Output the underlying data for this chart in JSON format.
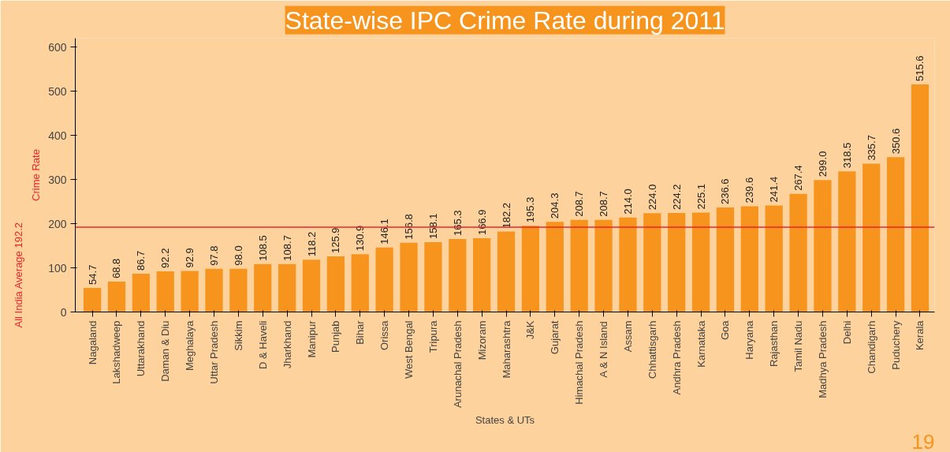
{
  "chart_data": {
    "type": "bar",
    "title": "State-wise IPC Crime Rate during 2011",
    "xlabel": "States & UTs",
    "ylabel": "Crime Rate",
    "categories": [
      "Nagaland",
      "Lakshadweep",
      "Uttarakhand",
      "Daman & Diu",
      "Meghalaya",
      "Uttar Pradesh",
      "Sikkim",
      "D & Haveli",
      "Jharkhand",
      "Manipur",
      "Punjab",
      "Bihar",
      "Orissa",
      "West Bengal",
      "Tripura",
      "Arunachal Pradesh",
      "Mizoram",
      "Maharashtra",
      "J&K",
      "Gujarat",
      "Himachal Pradesh",
      "A & N Island",
      "Assam",
      "Chhattisgarh",
      "Andhra Pradesh",
      "Karnataka",
      "Goa",
      "Haryana",
      "Rajasthan",
      "Tamil Nadu",
      "Madhya Pradesh",
      "Delhi",
      "Chandigarh",
      "Puduchery",
      "Kerala"
    ],
    "values": [
      54.7,
      68.8,
      86.7,
      92.2,
      92.9,
      97.8,
      98.0,
      108.5,
      108.7,
      118.2,
      125.9,
      130.9,
      146.1,
      156.8,
      158.1,
      165.3,
      166.9,
      182.2,
      195.3,
      204.3,
      208.7,
      208.7,
      214.0,
      224.0,
      224.2,
      225.1,
      236.6,
      239.6,
      241.4,
      267.4,
      299.0,
      318.5,
      335.7,
      350.6,
      515.6
    ],
    "value_labels": [
      "54.7",
      "68.8",
      "86.7",
      "92.2",
      "92.9",
      "97.8",
      "98.0",
      "108.5",
      "108.7",
      "118.2",
      "125.9",
      "130.9",
      "146.1",
      "156.8",
      "158.1",
      "165.3",
      "166.9",
      "182.2",
      "195.3",
      "204.3",
      "208.7",
      "208.7",
      "214.0",
      "224.0",
      "224.2",
      "225.1",
      "236.6",
      "239.6",
      "241.4",
      "267.4",
      "299.0",
      "318.5",
      "335.7",
      "350.6",
      "515.6"
    ],
    "color": "#f7941d",
    "ylim": [
      0,
      620
    ],
    "yticks": [
      0,
      100,
      200,
      300,
      400,
      500,
      600
    ],
    "grid": false,
    "ref_lines": [
      {
        "axis": "y",
        "value": 192.2,
        "label": "All India Average 192.2",
        "color": "#e8262b"
      }
    ],
    "annotations": [
      "19"
    ]
  }
}
